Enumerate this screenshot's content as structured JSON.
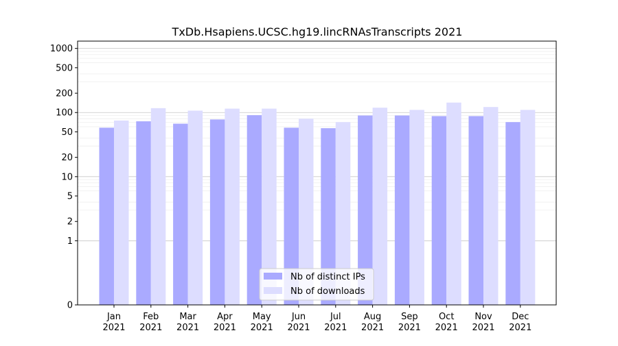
{
  "chart_data": {
    "type": "bar",
    "title": "TxDb.Hsapiens.UCSC.hg19.lincRNAsTranscripts 2021",
    "xlabel": "",
    "ylabel": "",
    "yscale": "symlog",
    "ylim": [
      0,
      1300
    ],
    "yticks": [
      0,
      1,
      2,
      5,
      10,
      20,
      50,
      100,
      200,
      500,
      1000
    ],
    "ytick_labels": [
      "0",
      "1",
      "2",
      "5",
      "10",
      "20",
      "50",
      "100",
      "200",
      "500",
      "1000"
    ],
    "grid": true,
    "legend_position": "lower center",
    "categories": [
      "Jan\n2021",
      "Feb\n2021",
      "Mar\n2021",
      "Apr\n2021",
      "May\n2021",
      "Jun\n2021",
      "Jul\n2021",
      "Aug\n2021",
      "Sep\n2021",
      "Oct\n2021",
      "Nov\n2021",
      "Dec\n2021"
    ],
    "series": [
      {
        "name": "Nb of distinct IPs",
        "color": "#aaaaff",
        "values": [
          58,
          73,
          67,
          78,
          91,
          58,
          57,
          90,
          90,
          88,
          88,
          71
        ]
      },
      {
        "name": "Nb of downloads",
        "color": "#ddddff",
        "values": [
          75,
          117,
          107,
          115,
          115,
          80,
          71,
          119,
          110,
          143,
          122,
          110
        ]
      }
    ]
  }
}
